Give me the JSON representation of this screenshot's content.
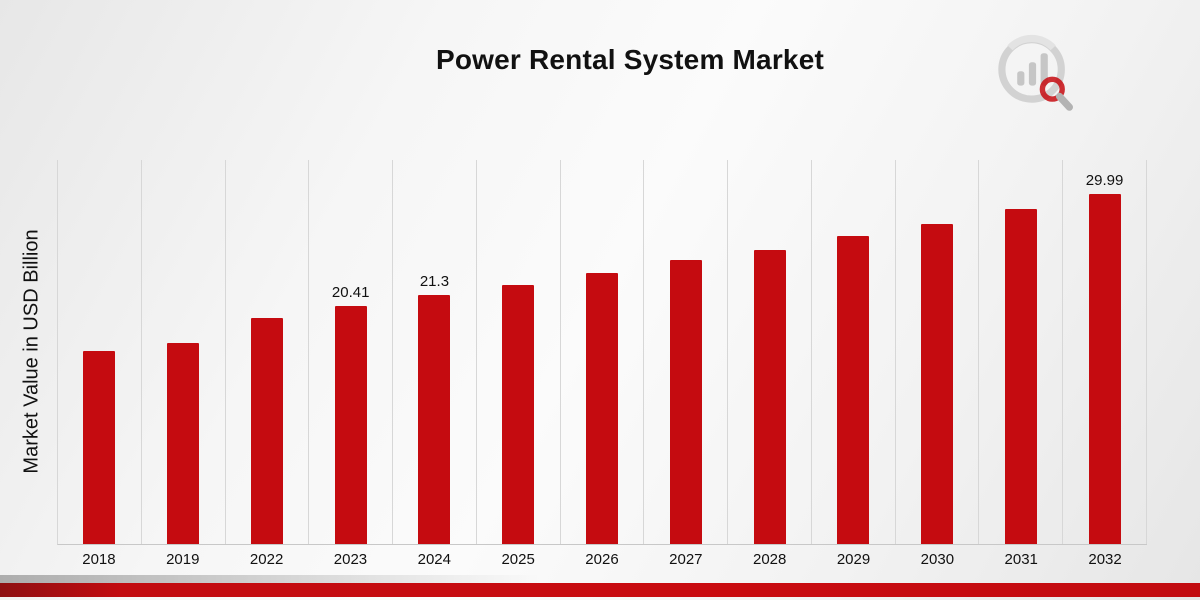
{
  "chart_data": {
    "type": "bar",
    "title": "Power Rental System Market",
    "ylabel": "Market Value in USD Billion",
    "categories": [
      "2018",
      "2019",
      "2022",
      "2023",
      "2024",
      "2025",
      "2026",
      "2027",
      "2028",
      "2029",
      "2030",
      "2031",
      "2032"
    ],
    "values": [
      16.5,
      17.2,
      19.4,
      20.41,
      21.3,
      22.2,
      23.2,
      24.3,
      25.2,
      26.4,
      27.4,
      28.7,
      29.99
    ],
    "data_labels": [
      "",
      "",
      "",
      "20.41",
      "21.3",
      "",
      "",
      "",
      "",
      "",
      "",
      "",
      "29.99"
    ],
    "bar_color": "#c50b10",
    "ylim": [
      0,
      33
    ],
    "grid": "vertical",
    "legend_position": "none"
  },
  "logo": {
    "name": "market-research-chart-logo",
    "ring_color": "#cfcfcf",
    "bar_color": "#c6c6c6",
    "accent_color": "#c50b10"
  }
}
